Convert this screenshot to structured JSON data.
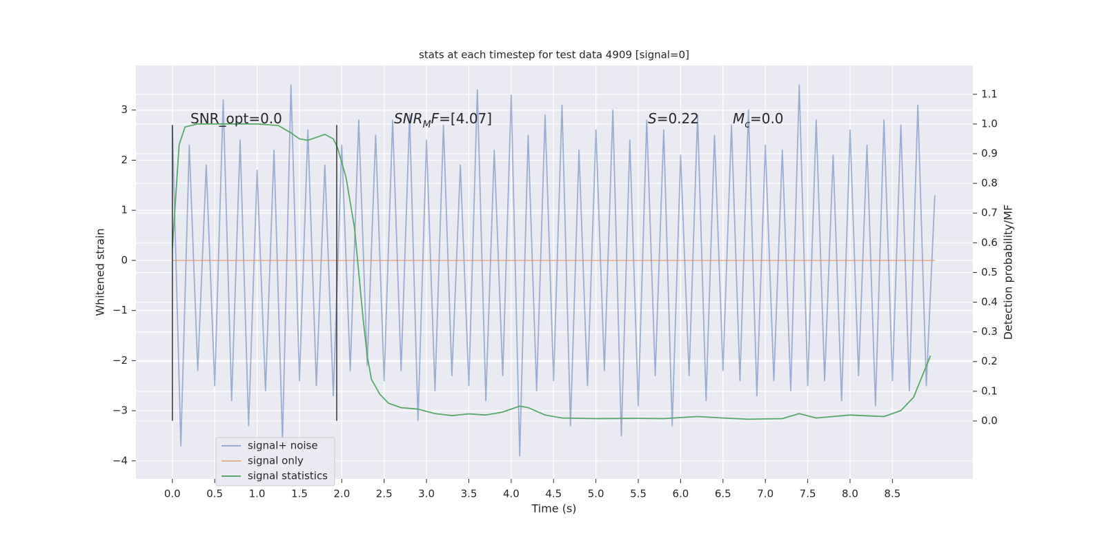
{
  "chart_data": {
    "type": "line",
    "title": "stats at each timestep for test data 4909 [signal=0]",
    "xlabel": "Time (s)",
    "ylabel": "Whitened strain",
    "y2label": "Detection probability/MF",
    "xlim": [
      -0.43,
      9.45
    ],
    "ylim": [
      -4.36,
      3.89
    ],
    "y2lim": [
      -0.195,
      1.197
    ],
    "xticks": [
      {
        "value": 0,
        "label": "0.0"
      },
      {
        "value": 0.5,
        "label": "0.5"
      },
      {
        "value": 1,
        "label": "1.0"
      },
      {
        "value": 1.5,
        "label": "1.5"
      },
      {
        "value": 2,
        "label": "2.0"
      },
      {
        "value": 2.5,
        "label": "2.5"
      },
      {
        "value": 3,
        "label": "3.0"
      },
      {
        "value": 3.5,
        "label": "3.5"
      },
      {
        "value": 4,
        "label": "4.0"
      },
      {
        "value": 4.5,
        "label": "4.5"
      },
      {
        "value": 5,
        "label": "5.0"
      },
      {
        "value": 5.5,
        "label": "5.5"
      },
      {
        "value": 6,
        "label": "6.0"
      },
      {
        "value": 6.5,
        "label": "6.5"
      },
      {
        "value": 7,
        "label": "7.0"
      },
      {
        "value": 7.5,
        "label": "7.5"
      },
      {
        "value": 8,
        "label": "8.0"
      },
      {
        "value": 8.5,
        "label": "8.5"
      }
    ],
    "yticks": [
      {
        "value": -4,
        "label": "−4"
      },
      {
        "value": -3,
        "label": "−3"
      },
      {
        "value": -2,
        "label": "−2"
      },
      {
        "value": -1,
        "label": "−1"
      },
      0,
      1,
      2,
      3
    ],
    "y2ticks": [
      {
        "value": 0,
        "label": "0.0"
      },
      {
        "value": 0.1,
        "label": "0.1"
      },
      {
        "value": 0.2,
        "label": "0.2"
      },
      {
        "value": 0.3,
        "label": "0.3"
      },
      {
        "value": 0.4,
        "label": "0.4"
      },
      {
        "value": 0.5,
        "label": "0.5"
      },
      {
        "value": 0.6,
        "label": "0.6"
      },
      {
        "value": 0.7,
        "label": "0.7"
      },
      {
        "value": 0.8,
        "label": "0.8"
      },
      {
        "value": 0.9,
        "label": "0.9"
      },
      {
        "value": 1,
        "label": "1.0"
      },
      {
        "value": 1.1,
        "label": "1.1"
      }
    ],
    "grid": true,
    "legend": "lower left",
    "vlines": {
      "x": [
        0,
        1.94
      ],
      "ymin": -3.2,
      "ymax": 2.7,
      "color": "#333333"
    },
    "annotations": [
      [
        {
          "text": "SNR_opt=0.0"
        }
      ],
      [
        {
          "text": "SNR",
          "italic": true
        },
        {
          "text": "M",
          "italic": true,
          "sub": true
        },
        {
          "text": "F",
          "italic": true
        },
        {
          "text": "=[4.07]"
        }
      ],
      [
        {
          "text": "S",
          "italic": true
        },
        {
          "text": "=0.22"
        }
      ],
      [
        {
          "text": "M",
          "italic": true
        },
        {
          "text": "c",
          "italic": true,
          "sub": true
        },
        {
          "text": "=0.0"
        }
      ]
    ],
    "series": [
      {
        "name": "signal+ noise",
        "color": "#4c72b0",
        "alpha": 0.5,
        "x": [
          0,
          0.1,
          0.2,
          0.3,
          0.4,
          0.5,
          0.6,
          0.7,
          0.8,
          0.9,
          1,
          1.1,
          1.2,
          1.3,
          1.4,
          1.5,
          1.6,
          1.7,
          1.8,
          1.9,
          2,
          2.1,
          2.2,
          2.3,
          2.4,
          2.5,
          2.6,
          2.7,
          2.8,
          2.9,
          3,
          3.1,
          3.2,
          3.3,
          3.4,
          3.5,
          3.6,
          3.7,
          3.8,
          3.9,
          4,
          4.1,
          4.2,
          4.3,
          4.4,
          4.5,
          4.6,
          4.7,
          4.8,
          4.9,
          5,
          5.1,
          5.2,
          5.3,
          5.4,
          5.5,
          5.6,
          5.7,
          5.8,
          5.9,
          6,
          6.1,
          6.2,
          6.3,
          6.4,
          6.5,
          6.6,
          6.7,
          6.8,
          6.9,
          7,
          7.1,
          7.2,
          7.3,
          7.4,
          7.5,
          7.6,
          7.7,
          7.8,
          7.9,
          8,
          8.1,
          8.2,
          8.3,
          8.4,
          8.5,
          8.6,
          8.7,
          8.8,
          8.9,
          9
        ],
        "values": [
          2.7,
          -3.7,
          2.3,
          -2.2,
          1.9,
          -2.5,
          3.2,
          -2.8,
          2.4,
          -3.3,
          1.8,
          -2.6,
          2.2,
          -3.6,
          3.5,
          -2.4,
          2.6,
          -2.5,
          1.9,
          -2.7,
          2.3,
          -2.2,
          2.8,
          -2.1,
          2.5,
          -2.4,
          2.8,
          -2.2,
          2.9,
          -3.2,
          2.4,
          -2.6,
          2.7,
          -2.3,
          1.9,
          -2.5,
          3.4,
          -2.8,
          2.2,
          -2.3,
          3.3,
          -3.9,
          2.5,
          -2.6,
          2.9,
          -2.4,
          3.1,
          -3.3,
          2.2,
          -2.5,
          2.6,
          -2.2,
          3.0,
          -3.5,
          2.4,
          -2.9,
          2.8,
          -2.3,
          2.6,
          -3.3,
          2.1,
          -2.3,
          2.9,
          -2.8,
          2.5,
          -2.2,
          2.7,
          -2.4,
          3.0,
          -2.7,
          2.3,
          -2.4,
          2.2,
          -2.6,
          3.5,
          -2.5,
          2.8,
          -2.4,
          2.1,
          -2.8,
          2.6,
          -2.3,
          2.3,
          -2.9,
          2.8,
          -2.4,
          2.7,
          -2.6,
          3.1,
          -2.5,
          1.3
        ]
      },
      {
        "name": "signal only",
        "color": "#dd8452",
        "alpha": 0.6,
        "x": [
          0,
          9
        ],
        "values": [
          0,
          0
        ]
      },
      {
        "name": "signal statistics",
        "color": "#55a868",
        "alpha": 1,
        "axis": "y2",
        "x": [
          0,
          0.08,
          0.15,
          0.3,
          1.0,
          1.25,
          1.4,
          1.5,
          1.6,
          1.7,
          1.8,
          1.9,
          1.95,
          2.05,
          2.15,
          2.2,
          2.25,
          2.3,
          2.35,
          2.45,
          2.55,
          2.7,
          2.9,
          3.1,
          3.3,
          3.5,
          3.7,
          3.9,
          4.1,
          4.2,
          4.4,
          4.6,
          5.0,
          5.5,
          5.8,
          6.2,
          6.5,
          6.8,
          7.2,
          7.4,
          7.6,
          8.0,
          8.4,
          8.6,
          8.75,
          8.85,
          8.95
        ],
        "values": [
          0.58,
          0.93,
          0.99,
          1.0,
          1.0,
          0.995,
          0.97,
          0.95,
          0.945,
          0.955,
          0.965,
          0.95,
          0.92,
          0.82,
          0.65,
          0.5,
          0.35,
          0.22,
          0.14,
          0.09,
          0.06,
          0.045,
          0.04,
          0.025,
          0.018,
          0.024,
          0.02,
          0.03,
          0.05,
          0.045,
          0.02,
          0.01,
          0.008,
          0.009,
          0.008,
          0.015,
          0.01,
          0.006,
          0.008,
          0.025,
          0.01,
          0.02,
          0.015,
          0.035,
          0.08,
          0.15,
          0.22
        ]
      }
    ]
  }
}
